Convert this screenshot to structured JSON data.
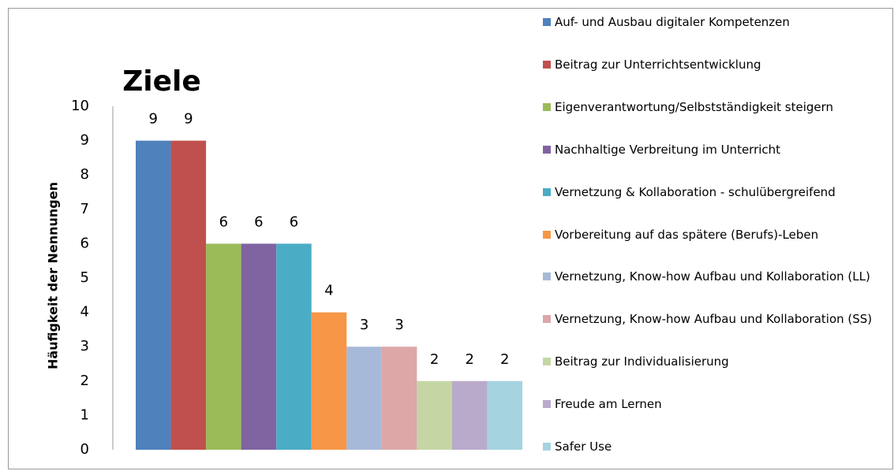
{
  "chart_data": {
    "type": "bar",
    "title": "Ziele",
    "ylabel": "Häufigkeit der Nennungen",
    "categories": [
      null
    ],
    "series": [
      {
        "name": "Auf- und Ausbau digitaler Kompetenzen",
        "color": "#4f81bd",
        "values": [
          9
        ]
      },
      {
        "name": "Beitrag zur Unterrichtsentwicklung",
        "color": "#c0504d",
        "values": [
          9
        ]
      },
      {
        "name": "Eigenverantwortung/Selbstständigkeit steigern",
        "color": "#9bbb59",
        "values": [
          6
        ]
      },
      {
        "name": "Nachhaltige Verbreitung im Unterricht",
        "color": "#8064a2",
        "values": [
          6
        ]
      },
      {
        "name": "Vernetzung & Kollaboration - schulübergreifend",
        "color": "#4bacc6",
        "values": [
          6
        ]
      },
      {
        "name": "Vorbereitung auf das spätere (Berufs)-Leben",
        "color": "#f79646",
        "values": [
          4
        ]
      },
      {
        "name": "Vernetzung, Know-how Aufbau und Kollaboration (LL)",
        "color": "#a7b9d9",
        "values": [
          3
        ]
      },
      {
        "name": "Vernetzung, Know-how Aufbau und Kollaboration (SS)",
        "color": "#dca7a6",
        "values": [
          3
        ]
      },
      {
        "name": "Beitrag zur Individualisierung",
        "color": "#c5d6a4",
        "values": [
          2
        ]
      },
      {
        "name": "Freude am Lernen",
        "color": "#b9aacb",
        "values": [
          2
        ]
      },
      {
        "name": "Safer Use",
        "color": "#a5d3e0",
        "values": [
          2
        ]
      }
    ],
    "ylim": [
      0,
      10
    ],
    "yticks": [
      0,
      1,
      2,
      3,
      4,
      5,
      6,
      7,
      8,
      9,
      10
    ],
    "grid": false,
    "legend": "right"
  }
}
